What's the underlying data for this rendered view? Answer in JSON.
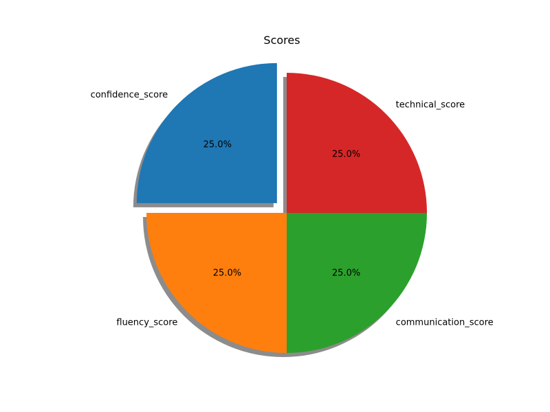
{
  "chart_data": {
    "type": "pie",
    "title": "Scores",
    "slices": [
      {
        "label": "technical_score",
        "value": 25,
        "pct_label": "25.0%",
        "color": "#d62728",
        "explode": false
      },
      {
        "label": "confidence_score",
        "value": 25,
        "pct_label": "25.0%",
        "color": "#1f77b4",
        "explode": true
      },
      {
        "label": "fluency_score",
        "value": 25,
        "pct_label": "25.0%",
        "color": "#ff7f0e",
        "explode": false
      },
      {
        "label": "communication_score",
        "value": 25,
        "pct_label": "25.0%",
        "color": "#2ca02c",
        "explode": false
      }
    ],
    "shadow": true,
    "start_angle_deg": 0,
    "direction": "counterclockwise"
  }
}
